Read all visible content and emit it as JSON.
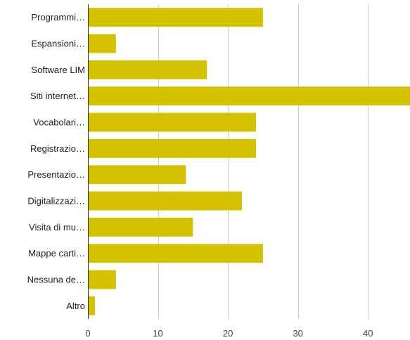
{
  "chart_data": {
    "type": "bar",
    "orientation": "horizontal",
    "categories": [
      "Programmi…",
      "Espansioni…",
      "Software LIM",
      "Siti internet…",
      "Vocabolari…",
      "Registrazio…",
      "Presentazio…",
      "Digitalizzazi…",
      "Visita di mu…",
      "Mappe carti…",
      "Nessuna de…",
      "Altro"
    ],
    "values": [
      25,
      4,
      17,
      47,
      24,
      24,
      14,
      22,
      15,
      25,
      4,
      1
    ],
    "xlim": [
      0,
      46
    ],
    "xticks": [
      "0",
      "10",
      "20",
      "30",
      "40"
    ],
    "grid": true,
    "bar_color": "#d4c200"
  }
}
